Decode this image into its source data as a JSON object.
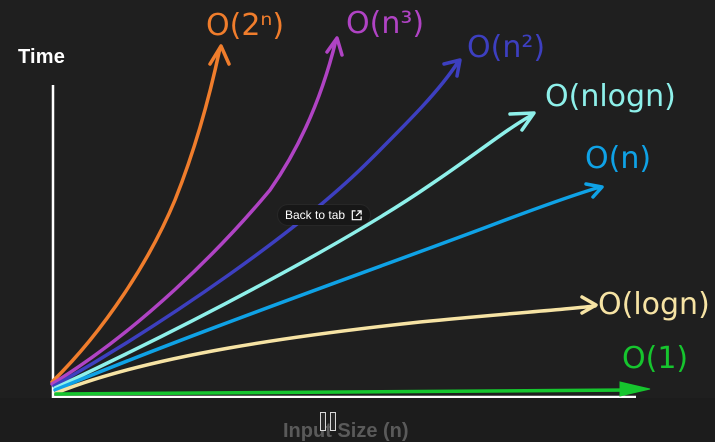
{
  "overlay": {
    "back_label": "Back to tab",
    "back_icon": "external-link-icon"
  },
  "controls": {
    "pause_icon": "pause-icon"
  },
  "chart_data": {
    "type": "line",
    "title": "",
    "ylabel": "Time",
    "xlabel": "Input Size (n)",
    "grid": false,
    "series": [
      {
        "name": "O(2ⁿ)",
        "color": "#f07d2c"
      },
      {
        "name": "O(n³)",
        "color": "#b043c4"
      },
      {
        "name": "O(n²)",
        "color": "#3d3fc0"
      },
      {
        "name": "O(nlogn)",
        "color": "#8ef0ea"
      },
      {
        "name": "O(n)",
        "color": "#0fa2e6"
      },
      {
        "name": "O(logn)",
        "color": "#f6e3a4"
      },
      {
        "name": "O(1)",
        "color": "#16c52e"
      }
    ]
  }
}
